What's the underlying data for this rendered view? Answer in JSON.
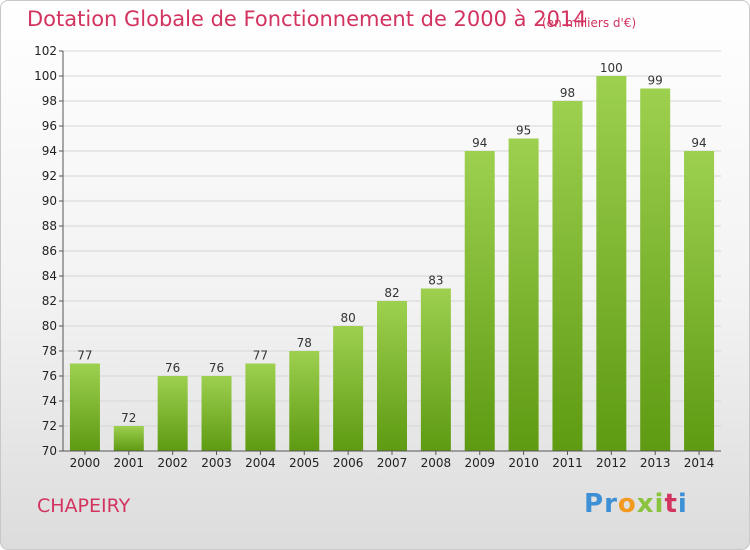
{
  "title": "Dotation Globale de Fonctionnement de 2000 à 2014",
  "unit_note": "(en milliers d'€)",
  "commune": "CHAPEIRY",
  "logo": {
    "letters": [
      "P",
      "r",
      "o",
      "x",
      "i",
      "t",
      "i"
    ],
    "colors": [
      "#3d8fd6",
      "#3d8fd6",
      "#f29a1f",
      "#8ac43f",
      "#8ac43f",
      "#d2335f",
      "#3d8fd6"
    ]
  },
  "colors": {
    "bar_top": "#9dd04f",
    "bar_bottom": "#5e9a12",
    "grid": "#d6d6d6"
  },
  "chart_data": {
    "type": "bar",
    "title": "Dotation Globale de Fonctionnement de 2000 à 2014",
    "categories": [
      "2000",
      "2001",
      "2002",
      "2003",
      "2004",
      "2005",
      "2006",
      "2007",
      "2008",
      "2009",
      "2010",
      "2011",
      "2012",
      "2013",
      "2014"
    ],
    "values": [
      77,
      72,
      76,
      76,
      77,
      78,
      80,
      82,
      83,
      94,
      95,
      98,
      100,
      99,
      94
    ],
    "ylim": [
      70,
      102
    ],
    "yticks": [
      70,
      72,
      74,
      76,
      78,
      80,
      82,
      84,
      86,
      88,
      90,
      92,
      94,
      96,
      98,
      100,
      102
    ],
    "grid": true
  }
}
